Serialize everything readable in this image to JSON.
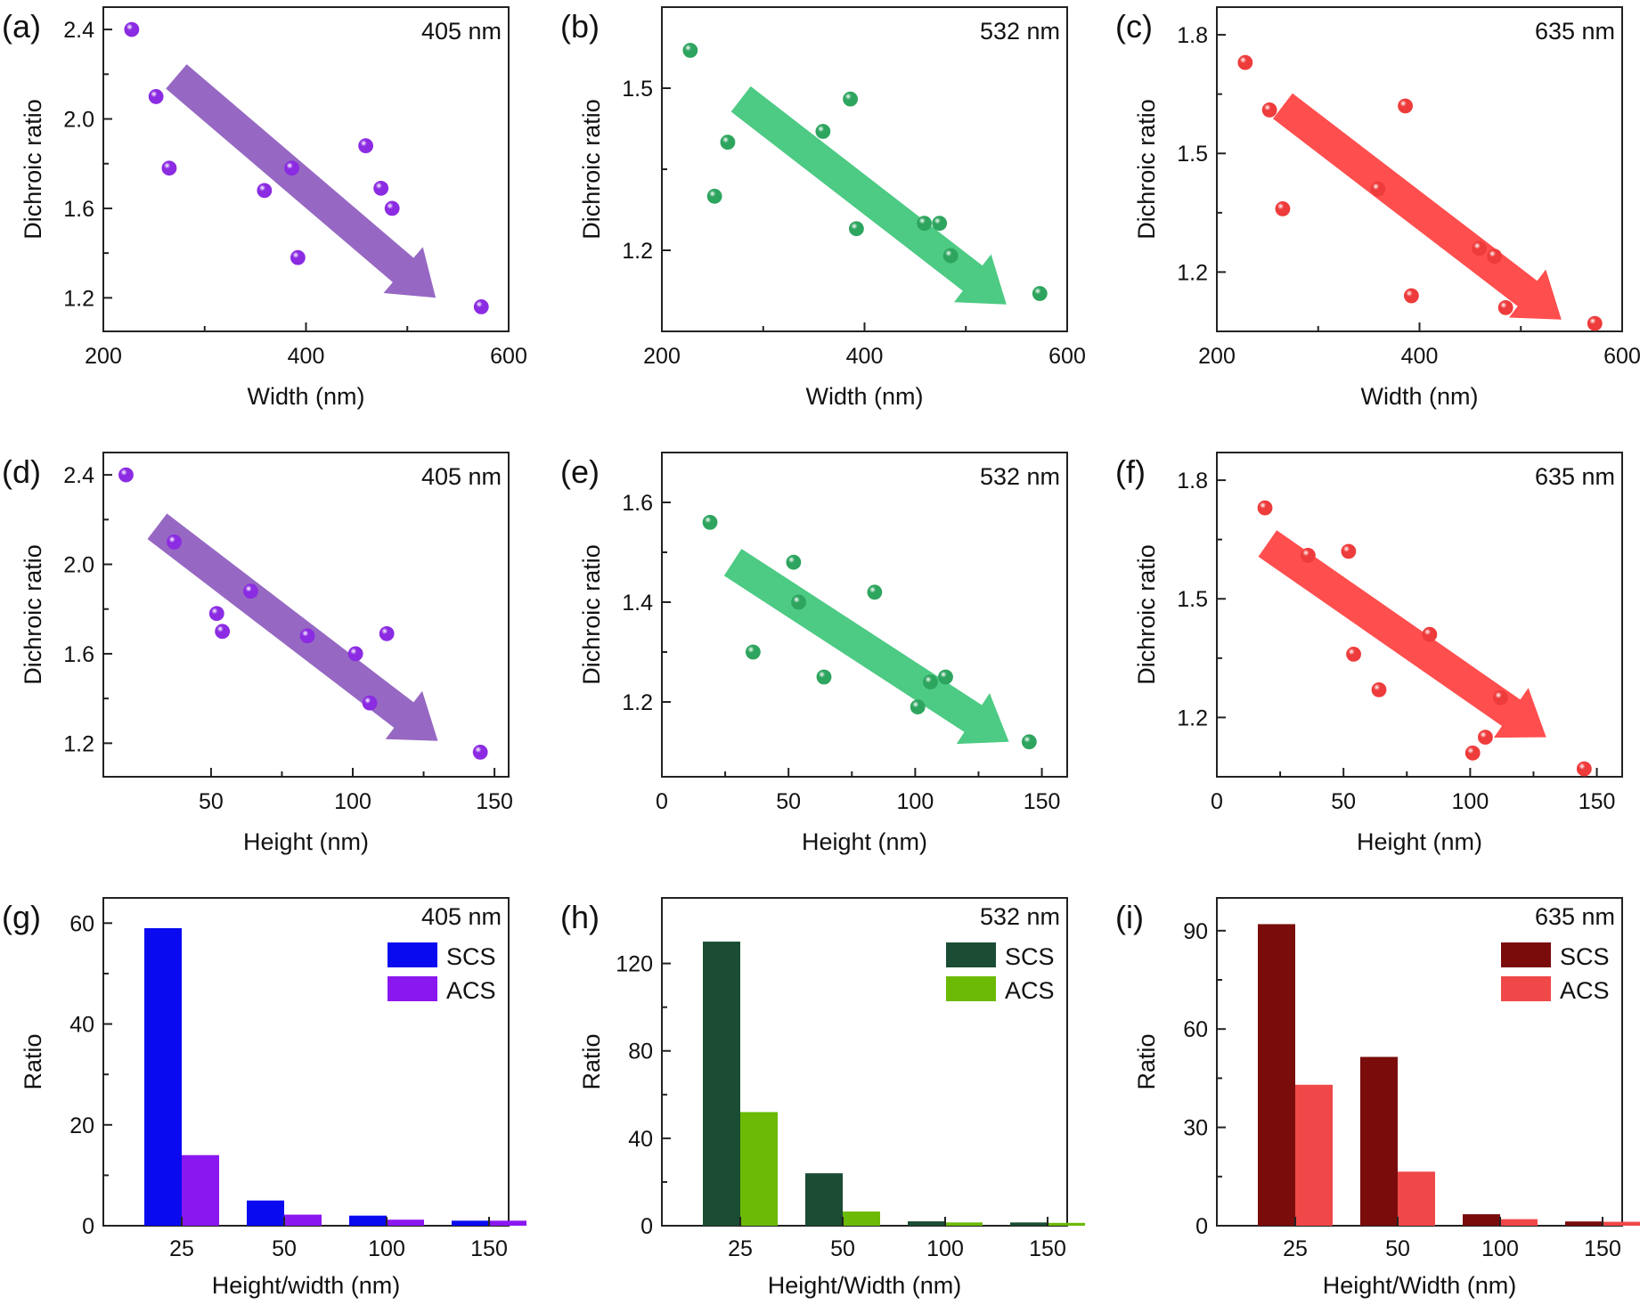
{
  "chart_data": [
    {
      "id": "a",
      "panel_label": "(a)",
      "type": "scatter",
      "wavelength": "405 nm",
      "xlabel": "Width (nm)",
      "ylabel": "Dichroic ratio",
      "xlim": [
        200,
        600
      ],
      "ylim": [
        1.05,
        2.5
      ],
      "xticks": [
        200,
        400,
        600
      ],
      "yticks": [
        1.2,
        1.6,
        2.0,
        2.4
      ],
      "tick_labels_x": [
        "200",
        "400",
        "600"
      ],
      "tick_labels_y": [
        "1.2",
        "1.6",
        "2.0",
        "2.4"
      ],
      "color": "#8b2be2",
      "arrow_color": "#9060c0",
      "arrow": {
        "from": [
          272,
          2.19
        ],
        "to": [
          528,
          1.2
        ]
      },
      "points": [
        [
          228,
          2.4
        ],
        [
          252,
          2.1
        ],
        [
          265,
          1.78
        ],
        [
          359,
          1.68
        ],
        [
          386,
          1.78
        ],
        [
          392,
          1.38
        ],
        [
          459,
          1.88
        ],
        [
          474,
          1.69
        ],
        [
          485,
          1.6
        ],
        [
          573,
          1.16
        ]
      ]
    },
    {
      "id": "b",
      "panel_label": "(b)",
      "type": "scatter",
      "wavelength": "532 nm",
      "xlabel": "Width (nm)",
      "ylabel": "Dichroic ratio",
      "xlim": [
        200,
        600
      ],
      "ylim": [
        1.05,
        1.65
      ],
      "xticks": [
        200,
        400,
        600
      ],
      "yticks": [
        1.2,
        1.5
      ],
      "tick_labels_x": [
        "200",
        "400",
        "600"
      ],
      "tick_labels_y": [
        "1.2",
        "1.5"
      ],
      "color": "#2ea55f",
      "arrow_color": "#43c77d",
      "arrow": {
        "from": [
          278,
          1.48
        ],
        "to": [
          540,
          1.1
        ]
      },
      "points": [
        [
          228,
          1.57
        ],
        [
          252,
          1.3
        ],
        [
          265,
          1.4
        ],
        [
          359,
          1.42
        ],
        [
          386,
          1.48
        ],
        [
          392,
          1.24
        ],
        [
          459,
          1.25
        ],
        [
          474,
          1.25
        ],
        [
          485,
          1.19
        ],
        [
          573,
          1.12
        ]
      ]
    },
    {
      "id": "c",
      "panel_label": "(c)",
      "type": "scatter",
      "wavelength": "635 nm",
      "xlabel": "Width (nm)",
      "ylabel": "Dichroic ratio",
      "xlim": [
        200,
        600
      ],
      "ylim": [
        1.05,
        1.87
      ],
      "xticks": [
        200,
        400,
        600
      ],
      "yticks": [
        1.2,
        1.5,
        1.8
      ],
      "tick_labels_x": [
        "200",
        "400",
        "600"
      ],
      "tick_labels_y": [
        "1.2",
        "1.5",
        "1.8"
      ],
      "color": "#ee3b3b",
      "arrow_color": "#ff4545",
      "arrow": {
        "from": [
          265,
          1.62
        ],
        "to": [
          540,
          1.08
        ]
      },
      "points": [
        [
          228,
          1.73
        ],
        [
          252,
          1.61
        ],
        [
          265,
          1.36
        ],
        [
          359,
          1.41
        ],
        [
          386,
          1.62
        ],
        [
          392,
          1.14
        ],
        [
          459,
          1.26
        ],
        [
          474,
          1.24
        ],
        [
          485,
          1.11
        ],
        [
          573,
          1.07
        ]
      ]
    },
    {
      "id": "d",
      "panel_label": "(d)",
      "type": "scatter",
      "wavelength": "405 nm",
      "xlabel": "Height (nm)",
      "ylabel": "Dichroic ratio",
      "xlim": [
        12,
        155
      ],
      "ylim": [
        1.05,
        2.5
      ],
      "xticks": [
        50,
        100,
        150
      ],
      "yticks": [
        1.2,
        1.6,
        2.0,
        2.4
      ],
      "tick_labels_x": [
        "50",
        "100",
        "150"
      ],
      "tick_labels_y": [
        "1.2",
        "1.6",
        "2.0",
        "2.4"
      ],
      "color": "#8b2be2",
      "arrow_color": "#9060c0",
      "arrow": {
        "from": [
          31,
          2.17
        ],
        "to": [
          130,
          1.21
        ]
      },
      "points": [
        [
          20,
          2.4
        ],
        [
          37,
          2.1
        ],
        [
          52,
          1.78
        ],
        [
          54,
          1.7
        ],
        [
          64,
          1.88
        ],
        [
          84,
          1.68
        ],
        [
          101,
          1.6
        ],
        [
          106,
          1.38
        ],
        [
          112,
          1.69
        ],
        [
          145,
          1.16
        ]
      ]
    },
    {
      "id": "e",
      "panel_label": "(e)",
      "type": "scatter",
      "wavelength": "532 nm",
      "xlabel": "Height (nm)",
      "ylabel": "Dichroic ratio",
      "xlim": [
        0,
        160
      ],
      "ylim": [
        1.05,
        1.7
      ],
      "xticks": [
        0,
        50,
        100,
        150
      ],
      "yticks": [
        1.2,
        1.4,
        1.6
      ],
      "tick_labels_x": [
        "0",
        "50",
        "100",
        "150"
      ],
      "tick_labels_y": [
        "1.2",
        "1.4",
        "1.6"
      ],
      "color": "#2ea55f",
      "arrow_color": "#43c77d",
      "arrow": {
        "from": [
          28,
          1.48
        ],
        "to": [
          137,
          1.12
        ]
      },
      "points": [
        [
          19,
          1.56
        ],
        [
          36,
          1.3
        ],
        [
          52,
          1.48
        ],
        [
          54,
          1.4
        ],
        [
          64,
          1.25
        ],
        [
          84,
          1.42
        ],
        [
          101,
          1.19
        ],
        [
          106,
          1.24
        ],
        [
          112,
          1.25
        ],
        [
          145,
          1.12
        ]
      ]
    },
    {
      "id": "f",
      "panel_label": "(f)",
      "type": "scatter",
      "wavelength": "635 nm",
      "xlabel": "Height (nm)",
      "ylabel": "Dichroic ratio",
      "xlim": [
        0,
        160
      ],
      "ylim": [
        1.05,
        1.87
      ],
      "xticks": [
        0,
        50,
        100,
        150
      ],
      "yticks": [
        1.2,
        1.5,
        1.8
      ],
      "tick_labels_x": [
        "0",
        "50",
        "100",
        "150"
      ],
      "tick_labels_y": [
        "1.2",
        "1.5",
        "1.8"
      ],
      "color": "#ee3b3b",
      "arrow_color": "#ff4545",
      "arrow": {
        "from": [
          20,
          1.64
        ],
        "to": [
          130,
          1.15
        ]
      },
      "points": [
        [
          19,
          1.73
        ],
        [
          36,
          1.61
        ],
        [
          52,
          1.62
        ],
        [
          54,
          1.36
        ],
        [
          64,
          1.27
        ],
        [
          84,
          1.41
        ],
        [
          101,
          1.11
        ],
        [
          106,
          1.15
        ],
        [
          112,
          1.25
        ],
        [
          145,
          1.07
        ]
      ]
    },
    {
      "id": "g",
      "panel_label": "(g)",
      "type": "bar",
      "wavelength": "405 nm",
      "xlabel": "Height/width (nm)",
      "ylabel": "Ratio",
      "categories": [
        "25",
        "50",
        "100",
        "150"
      ],
      "ylim": [
        0,
        65
      ],
      "yticks": [
        0,
        20,
        40,
        60
      ],
      "tick_labels_y": [
        "0",
        "20",
        "40",
        "60"
      ],
      "series": [
        {
          "name": "SCS",
          "color": "#0a0af0",
          "values": [
            59,
            5,
            2,
            1
          ]
        },
        {
          "name": "ACS",
          "color": "#8b17f0",
          "values": [
            14,
            2.2,
            1.2,
            1
          ]
        }
      ]
    },
    {
      "id": "h",
      "panel_label": "(h)",
      "type": "bar",
      "wavelength": "532 nm",
      "xlabel": "Height/Width (nm)",
      "ylabel": "Ratio",
      "categories": [
        "25",
        "50",
        "100",
        "150"
      ],
      "ylim": [
        0,
        150
      ],
      "yticks": [
        0,
        40,
        80,
        120
      ],
      "tick_labels_y": [
        "0",
        "40",
        "80",
        "120"
      ],
      "series": [
        {
          "name": "SCS",
          "color": "#1a4d33",
          "values": [
            130,
            24,
            2,
            1.5
          ]
        },
        {
          "name": "ACS",
          "color": "#6cba06",
          "values": [
            52,
            6.5,
            1.5,
            1.3
          ]
        }
      ]
    },
    {
      "id": "i",
      "panel_label": "(i)",
      "type": "bar",
      "wavelength": "635 nm",
      "xlabel": "Height/Width (nm)",
      "ylabel": "Ratio",
      "categories": [
        "25",
        "50",
        "100",
        "150"
      ],
      "ylim": [
        0,
        100
      ],
      "yticks": [
        0,
        30,
        60,
        90
      ],
      "tick_labels_y": [
        "0",
        "30",
        "60",
        "90"
      ],
      "series": [
        {
          "name": "SCS",
          "color": "#7a0c0c",
          "values": [
            92,
            51.5,
            3.5,
            1.3
          ]
        },
        {
          "name": "ACS",
          "color": "#f04848",
          "values": [
            43,
            16.5,
            2,
            1.2
          ]
        }
      ]
    }
  ]
}
